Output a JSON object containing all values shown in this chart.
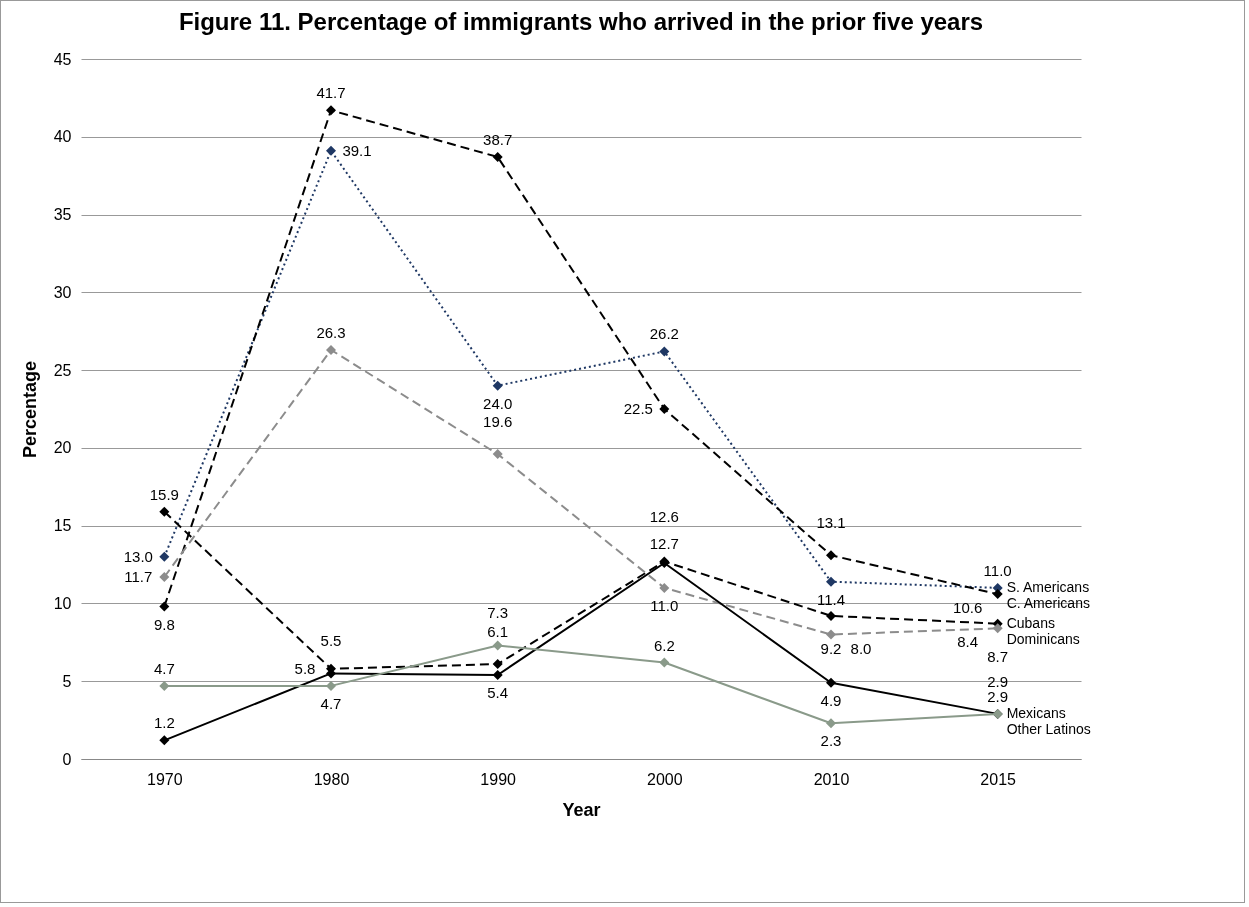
{
  "chart_data": {
    "type": "line",
    "title": "Figure 11. Percentage of immigrants who arrived in the prior five years",
    "xlabel": "Year",
    "ylabel": "Percentage",
    "categories": [
      "1970",
      "1980",
      "1990",
      "2000",
      "2010",
      "2015"
    ],
    "series": [
      {
        "name": "S. Americans",
        "color": "#1f3864",
        "line_style": "dotted",
        "values": [
          13.0,
          39.1,
          24.0,
          26.2,
          11.4,
          11.0
        ],
        "value_labels": [
          "13.0",
          "39.1",
          "24.0",
          "26.2",
          "11.4",
          "11.0"
        ]
      },
      {
        "name": "C. Americans",
        "color": "#000000",
        "line_style": "dashed",
        "values": [
          9.8,
          41.7,
          38.7,
          22.5,
          13.1,
          10.6
        ],
        "value_labels": [
          "9.8",
          "41.7",
          "38.7",
          "22.5",
          "13.1",
          "10.6"
        ]
      },
      {
        "name": "Cubans",
        "color": "#000000",
        "line_style": "dashed",
        "values": [
          15.9,
          5.8,
          6.1,
          12.7,
          9.2,
          8.7
        ],
        "value_labels": [
          "15.9",
          "5.8",
          "6.1",
          "12.7",
          "9.2",
          "8.7"
        ]
      },
      {
        "name": "Dominicans",
        "color": "#8c8c8c",
        "line_style": "dashed",
        "values": [
          11.7,
          26.3,
          19.6,
          11.0,
          8.0,
          8.4
        ],
        "value_labels": [
          "11.7",
          "26.3",
          "19.6",
          "11.0",
          "8.0",
          "8.4"
        ]
      },
      {
        "name": "Mexicans",
        "color": "#000000",
        "line_style": "solid",
        "values": [
          1.2,
          5.5,
          5.4,
          12.6,
          4.9,
          2.9
        ],
        "value_labels": [
          "1.2",
          "5.5",
          "5.4",
          "12.6",
          "4.9",
          "2.9"
        ]
      },
      {
        "name": "Other Latinos",
        "color": "#8a9a8a",
        "line_style": "solid",
        "values": [
          4.7,
          4.7,
          7.3,
          6.2,
          2.3,
          2.9
        ],
        "value_labels": [
          "4.7",
          "4.7",
          "7.3",
          "6.2",
          "2.3",
          "2.9"
        ]
      }
    ],
    "ylim": [
      0,
      45
    ],
    "yticks": [
      0,
      5,
      10,
      15,
      20,
      25,
      30,
      35,
      40,
      45
    ],
    "grid": "y",
    "legend": false,
    "marker": "diamond"
  }
}
